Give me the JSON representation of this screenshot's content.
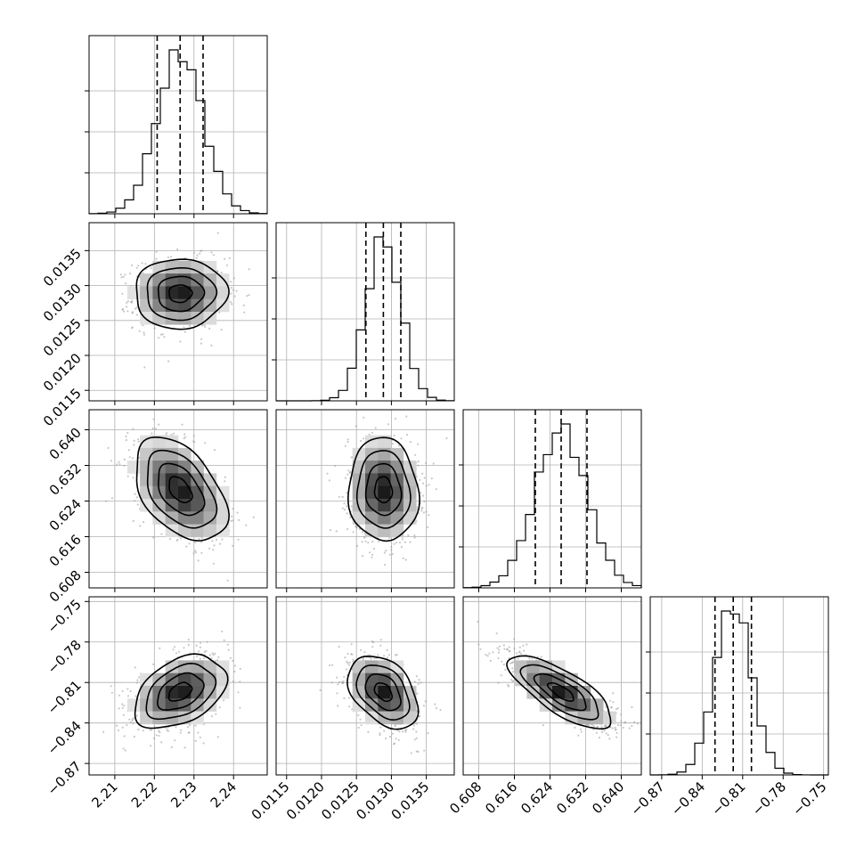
{
  "chart_data": {
    "type": "corner",
    "grid": true,
    "parameters": [
      {
        "id": "p1",
        "ticks": [
          2.21,
          2.22,
          2.23,
          2.24
        ],
        "tick_labels": [
          "2.21",
          "2.22",
          "2.23",
          "2.24"
        ],
        "range": [
          2.2035,
          2.2485
        ],
        "mean": 2.2265,
        "std": 0.0058,
        "quantiles": {
          "q16": 2.2207,
          "q50": 2.2265,
          "q84": 2.2323
        }
      },
      {
        "id": "p2",
        "ticks": [
          0.0115,
          0.012,
          0.0125,
          0.013,
          0.0135
        ],
        "tick_labels": [
          "0.0115",
          "0.0120",
          "0.0125",
          "0.0130",
          "0.0135"
        ],
        "range": [
          0.01135,
          0.0139
        ],
        "mean": 0.012885,
        "std": 0.00025,
        "quantiles": {
          "q16": 0.012635,
          "q50": 0.012885,
          "q84": 0.013135
        }
      },
      {
        "id": "p3",
        "ticks": [
          0.608,
          0.616,
          0.624,
          0.632,
          0.64
        ],
        "tick_labels": [
          "0.608",
          "0.616",
          "0.624",
          "0.632",
          "0.640"
        ],
        "range": [
          0.6045,
          0.6445
        ],
        "mean": 0.6265,
        "std": 0.0058,
        "quantiles": {
          "q16": 0.6207,
          "q50": 0.6265,
          "q84": 0.6323
        }
      },
      {
        "id": "p4",
        "ticks": [
          -0.87,
          -0.84,
          -0.81,
          -0.78,
          -0.75
        ],
        "tick_labels": [
          "−0.87",
          "−0.84",
          "−0.81",
          "−0.78",
          "−0.75"
        ],
        "range": [
          -0.8785,
          -0.7465
        ],
        "mean": -0.817,
        "std": 0.0135,
        "quantiles": {
          "q16": -0.8305,
          "q50": -0.817,
          "q84": -0.8035
        }
      }
    ],
    "correlations": [
      {
        "pair": [
          "p1",
          "p2"
        ],
        "rho": 0.02
      },
      {
        "pair": [
          "p1",
          "p3"
        ],
        "rho": -0.45
      },
      {
        "pair": [
          "p1",
          "p4"
        ],
        "rho": 0.4
      },
      {
        "pair": [
          "p2",
          "p3"
        ],
        "rho": -0.05
      },
      {
        "pair": [
          "p2",
          "p4"
        ],
        "rho": -0.4
      },
      {
        "pair": [
          "p3",
          "p4"
        ],
        "rho": -0.75
      }
    ],
    "contour_levels": [
      0.5,
      1.0,
      1.5,
      2.0
    ]
  }
}
